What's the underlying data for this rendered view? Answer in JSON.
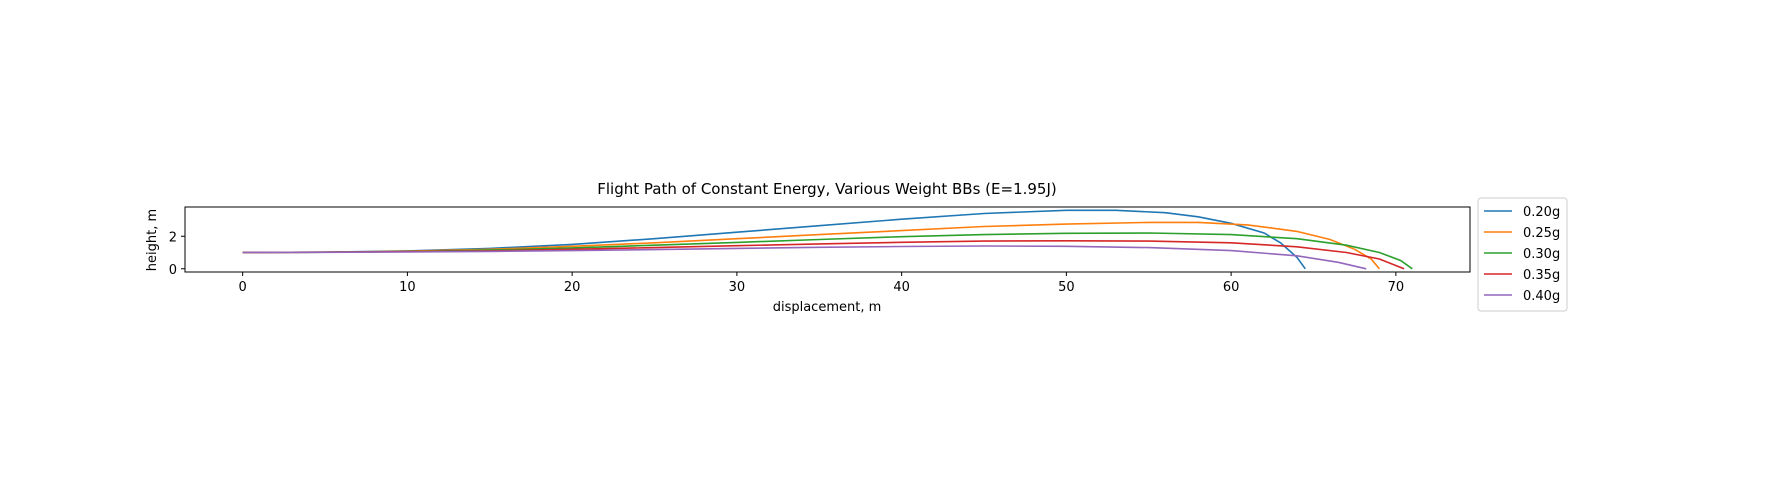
{
  "chart_data": {
    "type": "line",
    "title": "Flight Path of Constant Energy, Various Weight BBs (E=1.95J)",
    "xlabel": "displacement, m",
    "ylabel": "height, m",
    "xlim": [
      -3.5,
      74.5
    ],
    "ylim": [
      -0.2,
      3.8
    ],
    "xticks": [
      0,
      10,
      20,
      30,
      40,
      50,
      60,
      70
    ],
    "yticks": [
      0,
      2
    ],
    "grid": false,
    "legend_position": "outside-right-top",
    "series": [
      {
        "name": "0.20g",
        "color": "#1f77b4",
        "points": [
          [
            0,
            1.0
          ],
          [
            5,
            1.02
          ],
          [
            10,
            1.1
          ],
          [
            15,
            1.25
          ],
          [
            20,
            1.5
          ],
          [
            25,
            1.85
          ],
          [
            30,
            2.25
          ],
          [
            35,
            2.65
          ],
          [
            40,
            3.05
          ],
          [
            45,
            3.4
          ],
          [
            50,
            3.6
          ],
          [
            53,
            3.6
          ],
          [
            56,
            3.45
          ],
          [
            58,
            3.2
          ],
          [
            60,
            2.8
          ],
          [
            62,
            2.2
          ],
          [
            63,
            1.6
          ],
          [
            64,
            0.7
          ],
          [
            64.5,
            0.0
          ]
        ]
      },
      {
        "name": "0.25g",
        "color": "#ff7f0e",
        "points": [
          [
            0,
            1.0
          ],
          [
            5,
            1.02
          ],
          [
            10,
            1.08
          ],
          [
            15,
            1.2
          ],
          [
            20,
            1.38
          ],
          [
            25,
            1.6
          ],
          [
            30,
            1.85
          ],
          [
            35,
            2.1
          ],
          [
            40,
            2.35
          ],
          [
            45,
            2.6
          ],
          [
            50,
            2.75
          ],
          [
            55,
            2.85
          ],
          [
            58,
            2.85
          ],
          [
            61,
            2.7
          ],
          [
            64,
            2.3
          ],
          [
            66,
            1.8
          ],
          [
            67.5,
            1.2
          ],
          [
            68.5,
            0.6
          ],
          [
            69,
            0.0
          ]
        ]
      },
      {
        "name": "0.30g",
        "color": "#2ca02c",
        "points": [
          [
            0,
            1.0
          ],
          [
            5,
            1.02
          ],
          [
            10,
            1.06
          ],
          [
            15,
            1.15
          ],
          [
            20,
            1.28
          ],
          [
            25,
            1.45
          ],
          [
            30,
            1.62
          ],
          [
            35,
            1.8
          ],
          [
            40,
            1.97
          ],
          [
            45,
            2.1
          ],
          [
            50,
            2.18
          ],
          [
            55,
            2.2
          ],
          [
            60,
            2.1
          ],
          [
            64,
            1.85
          ],
          [
            67,
            1.45
          ],
          [
            69,
            1.0
          ],
          [
            70.3,
            0.5
          ],
          [
            71,
            0.0
          ]
        ]
      },
      {
        "name": "0.35g",
        "color": "#d62728",
        "points": [
          [
            0,
            1.0
          ],
          [
            5,
            1.02
          ],
          [
            10,
            1.05
          ],
          [
            15,
            1.1
          ],
          [
            20,
            1.2
          ],
          [
            25,
            1.3
          ],
          [
            30,
            1.42
          ],
          [
            35,
            1.53
          ],
          [
            40,
            1.63
          ],
          [
            45,
            1.7
          ],
          [
            50,
            1.72
          ],
          [
            55,
            1.7
          ],
          [
            60,
            1.6
          ],
          [
            64,
            1.35
          ],
          [
            67,
            1.0
          ],
          [
            69,
            0.6
          ],
          [
            70.5,
            0.0
          ]
        ]
      },
      {
        "name": "0.40g",
        "color": "#9467bd",
        "points": [
          [
            0,
            1.0
          ],
          [
            5,
            1.01
          ],
          [
            10,
            1.03
          ],
          [
            15,
            1.07
          ],
          [
            20,
            1.12
          ],
          [
            25,
            1.18
          ],
          [
            30,
            1.25
          ],
          [
            35,
            1.32
          ],
          [
            40,
            1.37
          ],
          [
            45,
            1.4
          ],
          [
            50,
            1.38
          ],
          [
            55,
            1.3
          ],
          [
            60,
            1.12
          ],
          [
            64,
            0.8
          ],
          [
            66.5,
            0.4
          ],
          [
            68.2,
            0.0
          ]
        ]
      }
    ]
  }
}
